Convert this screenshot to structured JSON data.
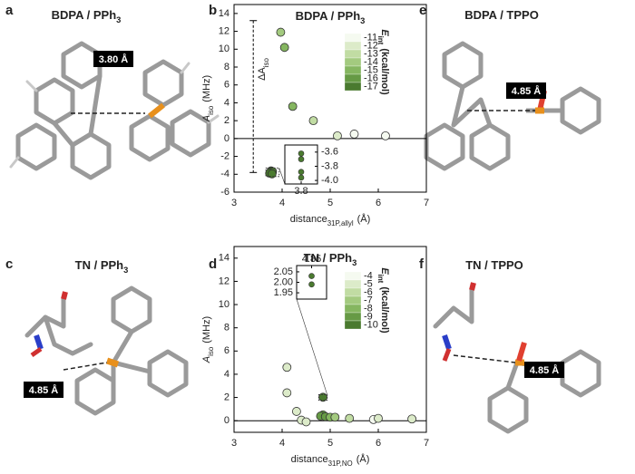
{
  "panel_letters": [
    "a",
    "b",
    "c",
    "d",
    "e",
    "f"
  ],
  "structures": [
    {
      "title": {
        "main": "BDPA / PPh",
        "sub": "3"
      },
      "distance": "3.80 Å"
    },
    {
      "title": {
        "main": "BDPA / TPPO"
      },
      "distance": "4.85 Å"
    },
    {
      "title": {
        "main": "TN / PPh",
        "sub": "3"
      },
      "distance": "4.85 Å"
    },
    {
      "title": {
        "main": "TN / TPPO"
      },
      "distance": "4.85 Å"
    }
  ],
  "chart_data": [
    {
      "type": "scatter",
      "title": {
        "main": "BDPA / PPh",
        "sub": "3"
      },
      "xlabel": {
        "main": "distance",
        "sub": "31P,allyl",
        "unit": "(Å)"
      },
      "ylabel": {
        "main": "A",
        "sub": "iso",
        "unit": "(MHz)"
      },
      "xlim": [
        3,
        7
      ],
      "xticks": [
        3,
        4,
        5,
        6,
        7
      ],
      "ylim": [
        -6,
        15
      ],
      "yticks": [
        -6,
        -4,
        -2,
        0,
        2,
        4,
        6,
        8,
        10,
        12,
        14
      ],
      "points": {
        "x": [
          3.77,
          3.8,
          3.74,
          3.79,
          3.97,
          4.05,
          4.22,
          4.65,
          5.15,
          5.5,
          6.15
        ],
        "y": [
          -3.62,
          -3.7,
          -3.88,
          -3.95,
          11.9,
          10.2,
          3.6,
          2.0,
          0.3,
          0.5,
          0.3
        ],
        "energy": [
          -17,
          -17,
          -17,
          -17,
          -14,
          -15,
          -15,
          -13,
          -12,
          -11,
          -11
        ]
      },
      "colorbar": {
        "title": {
          "main": "E",
          "sub": "int",
          "unit": "(kcal/mol)"
        },
        "ticks": [
          -11,
          -12,
          -13,
          -14,
          -15,
          -16,
          -17
        ],
        "colors": [
          "#f5faf0",
          "#dcebc9",
          "#c1dca3",
          "#a3ca7f",
          "#85b660",
          "#669a45",
          "#4a7a2f"
        ]
      },
      "annotation": {
        "main": "ΔA",
        "sub": "iso",
        "x": 3.4,
        "y": [
          13.2,
          -3.8
        ]
      },
      "inset": {
        "xlim": [
          3.7,
          3.9
        ],
        "ylim": [
          -4.05,
          -3.5
        ],
        "xticks": [
          3.8
        ],
        "yticks": [
          -3.6,
          -3.8,
          {
            "value": -4,
            "label": "-4.0"
          }
        ],
        "points": {
          "x": [
            3.8,
            3.8,
            3.8,
            3.8
          ],
          "y": [
            -3.62,
            -3.7,
            -3.88,
            -3.96
          ],
          "energy": [
            -17,
            -17,
            -17,
            -17
          ]
        }
      }
    },
    {
      "type": "scatter",
      "title": {
        "main": "TN / PPh",
        "sub": "3"
      },
      "xlabel": {
        "main": "distance",
        "sub": "31P,NO",
        "unit": "(Å)"
      },
      "ylabel": {
        "main": "A",
        "sub": "iso",
        "unit": "(MHz)"
      },
      "xlim": [
        3,
        7
      ],
      "xticks": [
        3,
        4,
        5,
        6,
        7
      ],
      "ylim": [
        -1,
        15
      ],
      "yticks": [
        0,
        2,
        4,
        6,
        8,
        10,
        12,
        14
      ],
      "points": {
        "x": [
          4.1,
          4.1,
          4.3,
          4.4,
          4.5,
          4.85,
          4.85,
          4.8,
          4.9,
          5.0,
          5.1,
          5.4,
          5.9,
          6.0,
          6.7
        ],
        "y": [
          4.6,
          2.4,
          0.8,
          0.05,
          -0.1,
          2.02,
          0.5,
          0.4,
          0.35,
          0.3,
          0.3,
          0.2,
          0.1,
          0.2,
          0.15
        ],
        "energy": [
          -5,
          -5,
          -5,
          -5,
          -5,
          -10,
          -9,
          -9,
          -9,
          -8,
          -7,
          -6,
          -4,
          -5,
          -5
        ]
      },
      "colorbar": {
        "title": {
          "main": "E",
          "sub": "int",
          "unit": "(kcal/mol)"
        },
        "ticks": [
          -4,
          -5,
          -6,
          -7,
          -8,
          -9,
          -10
        ],
        "colors": [
          "#f5faf0",
          "#dcebc9",
          "#c1dca3",
          "#a3ca7f",
          "#85b660",
          "#669a45",
          "#4a7a2f"
        ]
      },
      "inset": {
        "xlim": [
          4.8,
          4.9
        ],
        "ylim": [
          1.92,
          2.08
        ],
        "xticks": [
          4.85
        ],
        "yticks": [
          2.05,
          {
            "value": 2,
            "label": "2.00"
          },
          1.95
        ],
        "points": {
          "x": [
            4.85,
            4.85
          ],
          "y": [
            2.03,
            1.99
          ],
          "energy": [
            -10,
            -10
          ]
        }
      }
    }
  ]
}
